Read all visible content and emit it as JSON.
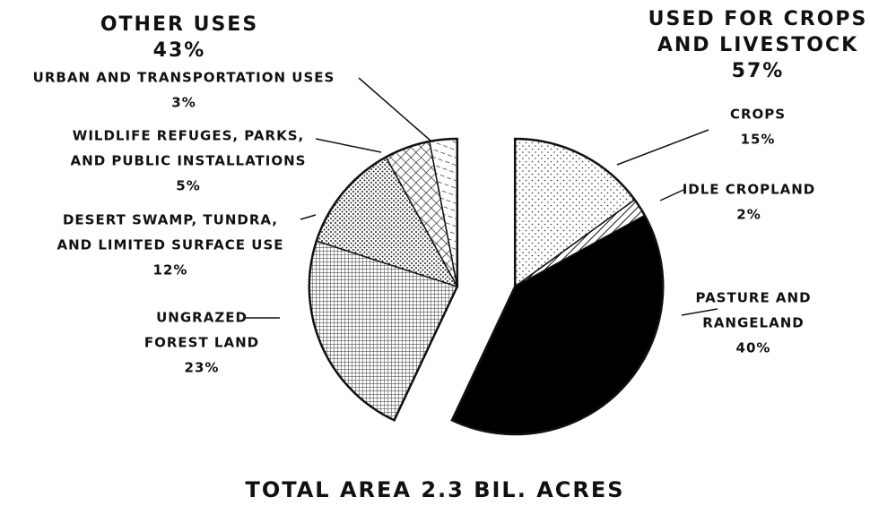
{
  "chart_data": {
    "type": "pie",
    "title": "TOTAL AREA 2.3 BIL. ACRES",
    "categories": [
      [
        "CROPS"
      ],
      [
        "IDLE CROPLAND"
      ],
      [
        "PASTURE AND",
        "RANGELAND"
      ],
      [
        "UNGRAZED",
        "FOREST LAND"
      ],
      [
        "DESERT SWAMP, TUNDRA,",
        "AND LIMITED SURFACE USE"
      ],
      [
        "WILDLIFE REFUGES, PARKS,",
        "AND PUBLIC INSTALLATIONS"
      ],
      [
        "URBAN AND TRANSPORTATION USES"
      ]
    ],
    "values": [
      15,
      2,
      40,
      23,
      12,
      5,
      3
    ],
    "value_labels": [
      "15%",
      "2%",
      "40%",
      "23%",
      "12%",
      "5%",
      "3%"
    ],
    "groups": [
      {
        "name": [
          "USED FOR CROPS",
          "AND LIVESTOCK"
        ],
        "value": 57,
        "value_label": "57%"
      },
      {
        "name": [
          "OTHER USES"
        ],
        "value": 43,
        "value_label": "43%"
      }
    ]
  }
}
